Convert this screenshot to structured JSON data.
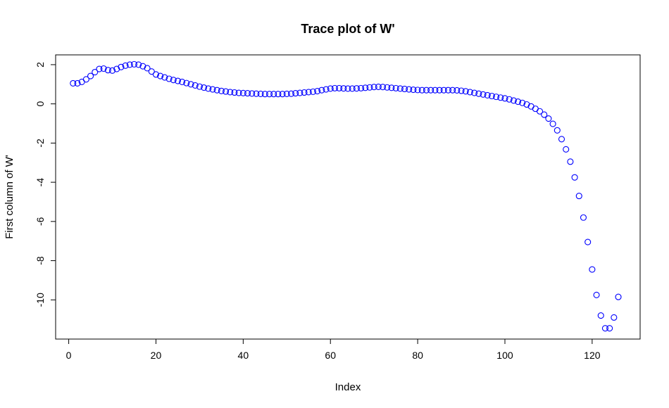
{
  "chart_data": {
    "type": "scatter",
    "title": "Trace plot of W'",
    "xlabel": "Index",
    "ylabel": "First column of W'",
    "xlim": [
      -3,
      131
    ],
    "ylim": [
      -12,
      2.5
    ],
    "xticks": [
      0,
      20,
      40,
      60,
      80,
      100,
      120
    ],
    "yticks": [
      2,
      0,
      -2,
      -4,
      -6,
      -8,
      -10
    ],
    "xtick_labels": [
      "0",
      "20",
      "40",
      "60",
      "80",
      "100",
      "120"
    ],
    "ytick_labels": [
      "2",
      "0",
      "-2",
      "-4",
      "-6",
      "-8",
      "-10"
    ],
    "grid": false,
    "point_color": "#0000ff",
    "series": [
      {
        "x": [
          1,
          2,
          3,
          4,
          5,
          6,
          7,
          8,
          9,
          10,
          11,
          12,
          13,
          14,
          15,
          16,
          17,
          18,
          19,
          20,
          21,
          22,
          23,
          24,
          25,
          26,
          27,
          28,
          29,
          30,
          31,
          32,
          33,
          34,
          35,
          36,
          37,
          38,
          39,
          40,
          41,
          42,
          43,
          44,
          45,
          46,
          47,
          48,
          49,
          50,
          51,
          52,
          53,
          54,
          55,
          56,
          57,
          58,
          59,
          60,
          61,
          62,
          63,
          64,
          65,
          66,
          67,
          68,
          69,
          70,
          71,
          72,
          73,
          74,
          75,
          76,
          77,
          78,
          79,
          80,
          81,
          82,
          83,
          84,
          85,
          86,
          87,
          88,
          89,
          90,
          91,
          92,
          93,
          94,
          95,
          96,
          97,
          98,
          99,
          100,
          101,
          102,
          103,
          104,
          105,
          106,
          107,
          108,
          109,
          110,
          111,
          112,
          113,
          114,
          115,
          116,
          117,
          118,
          119,
          120,
          121,
          122,
          123,
          124,
          125,
          126
        ],
        "y": [
          1.05,
          1.05,
          1.12,
          1.25,
          1.42,
          1.62,
          1.78,
          1.8,
          1.72,
          1.7,
          1.78,
          1.88,
          1.95,
          2.0,
          2.02,
          2.0,
          1.92,
          1.82,
          1.65,
          1.5,
          1.42,
          1.35,
          1.28,
          1.22,
          1.17,
          1.12,
          1.06,
          1.0,
          0.94,
          0.88,
          0.83,
          0.78,
          0.74,
          0.7,
          0.66,
          0.63,
          0.6,
          0.58,
          0.56,
          0.55,
          0.54,
          0.53,
          0.52,
          0.51,
          0.5,
          0.5,
          0.5,
          0.5,
          0.5,
          0.51,
          0.52,
          0.54,
          0.56,
          0.58,
          0.6,
          0.62,
          0.65,
          0.7,
          0.74,
          0.78,
          0.8,
          0.8,
          0.79,
          0.78,
          0.78,
          0.79,
          0.8,
          0.82,
          0.84,
          0.86,
          0.87,
          0.86,
          0.84,
          0.82,
          0.8,
          0.78,
          0.76,
          0.74,
          0.72,
          0.71,
          0.7,
          0.7,
          0.7,
          0.7,
          0.7,
          0.7,
          0.7,
          0.7,
          0.69,
          0.67,
          0.64,
          0.6,
          0.56,
          0.52,
          0.48,
          0.44,
          0.4,
          0.36,
          0.32,
          0.28,
          0.23,
          0.17,
          0.11,
          0.05,
          -0.03,
          -0.13,
          -0.25,
          -0.38,
          -0.55,
          -0.75,
          -1.02,
          -1.35,
          -1.8,
          -2.32,
          -2.95,
          -3.75,
          -4.7,
          -5.8,
          -7.05,
          -8.45,
          -9.75,
          -10.8,
          -11.45,
          -11.45,
          -10.9,
          -9.85
        ]
      }
    ]
  }
}
